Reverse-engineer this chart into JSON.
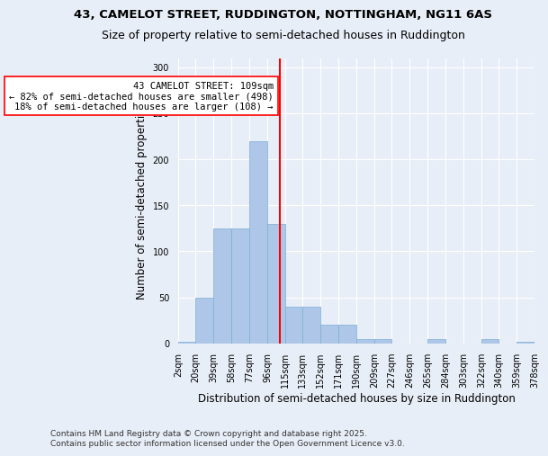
{
  "title_line1": "43, CAMELOT STREET, RUDDINGTON, NOTTINGHAM, NG11 6AS",
  "title_line2": "Size of property relative to semi-detached houses in Ruddington",
  "xlabel": "Distribution of semi-detached houses by size in Ruddington",
  "ylabel": "Number of semi-detached properties",
  "bin_labels": [
    "2sqm",
    "20sqm",
    "39sqm",
    "58sqm",
    "77sqm",
    "96sqm",
    "115sqm",
    "133sqm",
    "152sqm",
    "171sqm",
    "190sqm",
    "209sqm",
    "227sqm",
    "246sqm",
    "265sqm",
    "284sqm",
    "303sqm",
    "322sqm",
    "340sqm",
    "359sqm",
    "378sqm"
  ],
  "bin_edges": [
    2,
    20,
    39,
    58,
    77,
    96,
    115,
    133,
    152,
    171,
    190,
    209,
    227,
    246,
    265,
    284,
    303,
    322,
    340,
    359,
    378
  ],
  "bar_values": [
    2,
    50,
    125,
    125,
    220,
    130,
    40,
    40,
    20,
    20,
    5,
    5,
    0,
    0,
    5,
    0,
    0,
    5,
    0,
    2
  ],
  "bar_color": "#aec6e8",
  "bar_edge_color": "#7aafd4",
  "property_line_x": 109,
  "property_line_color": "red",
  "annotation_text": "43 CAMELOT STREET: 109sqm\n← 82% of semi-detached houses are smaller (498)\n18% of semi-detached houses are larger (108) →",
  "annotation_box_color": "white",
  "annotation_box_edge_color": "red",
  "ylim": [
    0,
    310
  ],
  "yticks": [
    0,
    50,
    100,
    150,
    200,
    250,
    300
  ],
  "background_color": "#e8eef7",
  "plot_bg_color": "#e8eef7",
  "footer_text": "Contains HM Land Registry data © Crown copyright and database right 2025.\nContains public sector information licensed under the Open Government Licence v3.0.",
  "title_fontsize": 9.5,
  "subtitle_fontsize": 9,
  "axis_label_fontsize": 8.5,
  "tick_fontsize": 7,
  "footer_fontsize": 6.5,
  "annotation_fontsize": 7.5
}
